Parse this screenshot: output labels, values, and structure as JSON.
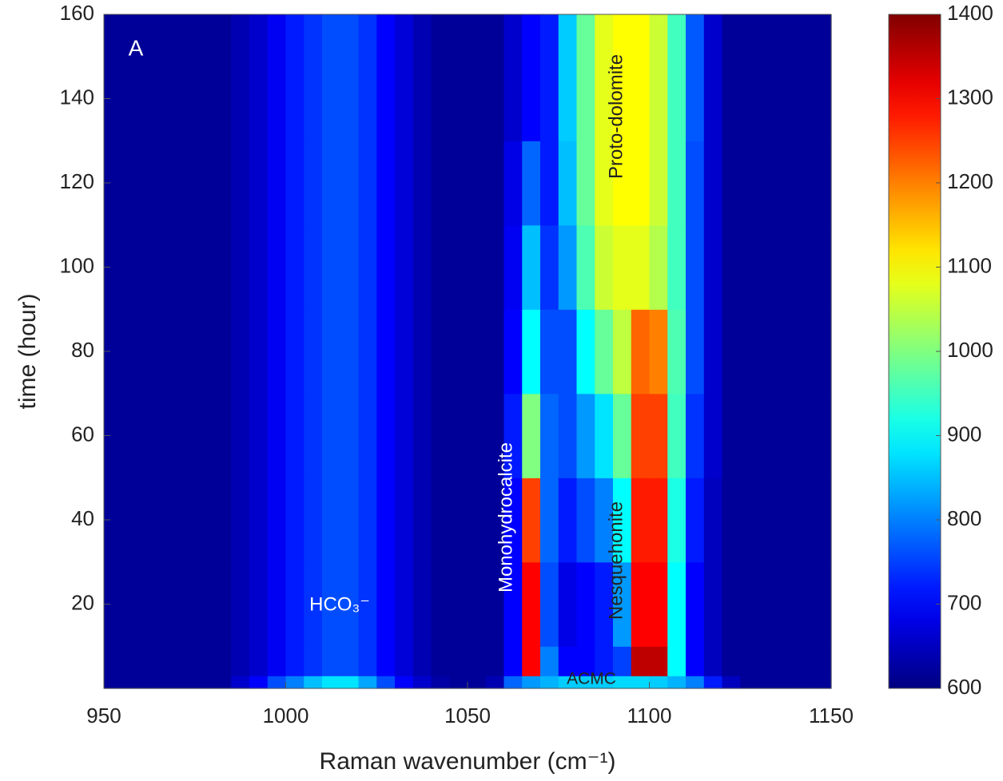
{
  "chart_data": {
    "type": "heatmap",
    "xlabel": "Raman wavenumber (cm⁻¹)",
    "ylabel": "time (hour)",
    "annotations": [
      "A",
      "HCO₃⁻",
      "Monohydrocalcite",
      "Nesquehonite",
      "Proto-dolomite",
      "ACMC"
    ],
    "xlim": [
      950,
      1150
    ],
    "xticks": [
      950,
      1000,
      1050,
      1100,
      1150
    ],
    "ylim": [
      0,
      160
    ],
    "yticks": [
      20,
      40,
      60,
      80,
      100,
      120,
      140,
      160
    ],
    "zlim": [
      600,
      1400
    ],
    "zticks": [
      600,
      700,
      800,
      900,
      1000,
      1100,
      1200,
      1300,
      1400
    ],
    "colormap": "jet",
    "xbins": [
      950,
      955,
      960,
      965,
      970,
      975,
      980,
      985,
      990,
      995,
      1000,
      1005,
      1010,
      1015,
      1020,
      1025,
      1030,
      1035,
      1040,
      1045,
      1050,
      1055,
      1060,
      1065,
      1070,
      1075,
      1080,
      1085,
      1090,
      1095,
      1100,
      1105,
      1110,
      1115,
      1120,
      1125,
      1130,
      1135,
      1140,
      1145,
      1150
    ],
    "ybins": [
      0,
      3,
      10,
      30,
      50,
      70,
      90,
      110,
      130,
      160
    ],
    "z": [
      [
        620,
        620,
        620,
        620,
        620,
        620,
        620,
        660,
        700,
        760,
        800,
        850,
        880,
        880,
        830,
        760,
        700,
        660,
        630,
        620,
        620,
        640,
        780,
        820,
        840,
        860,
        860,
        860,
        870,
        870,
        860,
        840,
        800,
        720,
        650,
        620,
        620,
        620,
        620,
        620
      ],
      [
        620,
        620,
        620,
        620,
        620,
        620,
        620,
        640,
        660,
        690,
        720,
        740,
        760,
        760,
        740,
        700,
        670,
        640,
        620,
        620,
        620,
        620,
        700,
        1300,
        800,
        700,
        700,
        720,
        750,
        1350,
        1350,
        900,
        700,
        650,
        620,
        620,
        620,
        620,
        620,
        620
      ],
      [
        620,
        620,
        620,
        620,
        620,
        620,
        620,
        640,
        660,
        690,
        720,
        740,
        760,
        760,
        740,
        700,
        670,
        640,
        620,
        620,
        620,
        620,
        700,
        1300,
        760,
        680,
        700,
        720,
        820,
        1300,
        1300,
        900,
        700,
        650,
        620,
        620,
        620,
        620,
        620,
        620
      ],
      [
        620,
        620,
        620,
        620,
        620,
        620,
        620,
        640,
        660,
        690,
        720,
        740,
        760,
        760,
        740,
        700,
        670,
        640,
        620,
        620,
        620,
        620,
        700,
        1250,
        780,
        720,
        760,
        800,
        900,
        1280,
        1280,
        920,
        720,
        650,
        620,
        620,
        620,
        620,
        620,
        620
      ],
      [
        620,
        620,
        620,
        620,
        620,
        620,
        620,
        640,
        660,
        690,
        720,
        740,
        760,
        760,
        740,
        700,
        670,
        640,
        620,
        620,
        620,
        620,
        720,
        1000,
        780,
        760,
        820,
        880,
        980,
        1250,
        1250,
        950,
        740,
        660,
        620,
        620,
        620,
        620,
        620,
        620
      ],
      [
        620,
        620,
        620,
        620,
        620,
        620,
        620,
        640,
        660,
        690,
        720,
        740,
        760,
        760,
        740,
        700,
        670,
        640,
        620,
        620,
        620,
        620,
        700,
        900,
        760,
        760,
        900,
        980,
        1050,
        1220,
        1200,
        960,
        760,
        660,
        620,
        620,
        620,
        620,
        620,
        620
      ],
      [
        620,
        620,
        620,
        620,
        620,
        620,
        620,
        640,
        660,
        690,
        720,
        740,
        760,
        760,
        740,
        700,
        670,
        640,
        620,
        620,
        620,
        620,
        690,
        850,
        740,
        820,
        960,
        1060,
        1080,
        1080,
        1040,
        950,
        760,
        660,
        620,
        620,
        620,
        620,
        620,
        620
      ],
      [
        620,
        620,
        620,
        620,
        620,
        620,
        620,
        640,
        660,
        690,
        720,
        740,
        760,
        760,
        740,
        700,
        670,
        640,
        620,
        620,
        620,
        620,
        680,
        780,
        720,
        850,
        980,
        1080,
        1100,
        1100,
        1060,
        950,
        760,
        660,
        620,
        620,
        620,
        620,
        620,
        620
      ],
      [
        620,
        620,
        620,
        620,
        620,
        620,
        620,
        640,
        660,
        690,
        720,
        740,
        760,
        760,
        740,
        700,
        670,
        640,
        620,
        620,
        620,
        620,
        660,
        700,
        720,
        860,
        980,
        1080,
        1100,
        1100,
        1060,
        950,
        770,
        660,
        620,
        620,
        620,
        620,
        620,
        620
      ]
    ]
  }
}
